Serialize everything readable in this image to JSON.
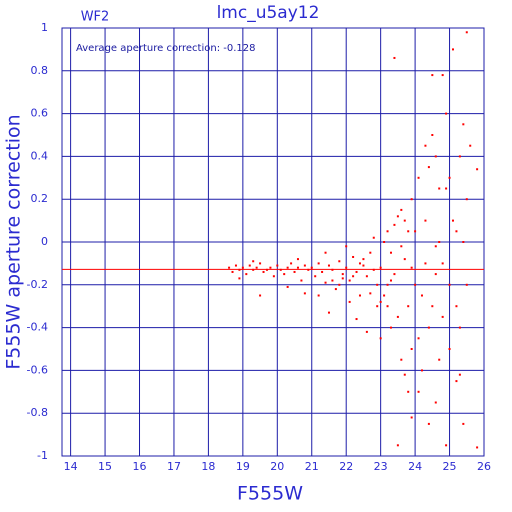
{
  "chart_data": {
    "type": "scatter",
    "title": "lmc_u5ay12",
    "panel_label": "WF2",
    "annotation": "Average aperture correction: -0.128",
    "average": -0.128,
    "x_label": "F555W",
    "y_label": "F555W aperture correction",
    "color": "#ff0000",
    "grid": true,
    "xlim": [
      13.75,
      26
    ],
    "ylim": [
      -1,
      1
    ],
    "xticks": [
      14,
      15,
      16,
      17,
      18,
      19,
      20,
      21,
      22,
      23,
      24,
      25,
      26
    ],
    "yticks": [
      -1,
      -0.8,
      -0.6,
      -0.4,
      -0.2,
      0,
      0.2,
      0.4,
      0.6,
      0.8,
      1
    ],
    "x": [
      18.6,
      18.7,
      18.8,
      18.9,
      19.0,
      19.1,
      19.2,
      19.3,
      19.4,
      19.5,
      19.6,
      19.7,
      19.8,
      19.9,
      20.0,
      20.1,
      20.2,
      20.3,
      20.4,
      20.5,
      20.6,
      20.7,
      20.8,
      20.9,
      19.5,
      20.3,
      20.8,
      18.9,
      19.3,
      20.6,
      21.0,
      21.1,
      21.2,
      21.3,
      21.4,
      21.5,
      21.6,
      21.7,
      21.8,
      21.9,
      22.0,
      22.1,
      22.2,
      22.3,
      22.4,
      22.5,
      22.6,
      22.7,
      22.8,
      22.9,
      21.2,
      21.5,
      21.8,
      22.0,
      22.3,
      22.6,
      22.8,
      21.4,
      22.1,
      22.9,
      21.9,
      22.5,
      21.6,
      22.7,
      22.2,
      22.4,
      23.0,
      23.1,
      23.2,
      23.3,
      23.4,
      23.5,
      23.6,
      23.7,
      23.8,
      23.9,
      23.0,
      23.2,
      23.4,
      23.6,
      23.8,
      23.1,
      23.3,
      23.5,
      23.7,
      23.9,
      23.5,
      23.4,
      23.9,
      23.7,
      23.2,
      23.6,
      23.8,
      23.3,
      23.0,
      23.9,
      24.0,
      24.1,
      24.2,
      24.3,
      24.4,
      24.5,
      24.6,
      24.7,
      24.8,
      24.9,
      25.0,
      25.1,
      25.2,
      25.3,
      25.4,
      25.5,
      24.0,
      24.2,
      24.4,
      24.6,
      24.8,
      25.0,
      25.2,
      25.4,
      24.1,
      24.3,
      24.5,
      24.7,
      24.9,
      25.1,
      25.3,
      25.5,
      24.5,
      24.9,
      24.7,
      25.0,
      24.3,
      24.8,
      25.2,
      24.6,
      25.4,
      24.1,
      24.4,
      25.5,
      25.8,
      25.8,
      25.6,
      24.6,
      25.3
    ],
    "values": [
      -0.12,
      -0.14,
      -0.11,
      -0.13,
      -0.12,
      -0.15,
      -0.11,
      -0.13,
      -0.12,
      -0.1,
      -0.14,
      -0.13,
      -0.12,
      -0.16,
      -0.11,
      -0.13,
      -0.15,
      -0.12,
      -0.1,
      -0.14,
      -0.12,
      -0.18,
      -0.11,
      -0.13,
      -0.25,
      -0.21,
      -0.24,
      -0.17,
      -0.09,
      -0.08,
      -0.12,
      -0.16,
      -0.1,
      -0.14,
      -0.19,
      -0.11,
      -0.13,
      -0.22,
      -0.09,
      -0.15,
      -0.12,
      -0.18,
      -0.07,
      -0.14,
      -0.25,
      -0.11,
      -0.16,
      -0.05,
      -0.13,
      -0.3,
      -0.25,
      -0.33,
      -0.2,
      -0.02,
      -0.36,
      -0.42,
      0.02,
      -0.05,
      -0.28,
      -0.2,
      -0.17,
      -0.08,
      -0.18,
      -0.24,
      -0.16,
      -0.1,
      -0.12,
      -0.25,
      0.05,
      -0.4,
      -0.15,
      0.12,
      -0.55,
      -0.08,
      -0.3,
      0.2,
      -0.45,
      -0.2,
      0.08,
      -0.02,
      -0.7,
      0.0,
      -0.18,
      -0.35,
      0.1,
      -0.5,
      -0.95,
      0.86,
      -0.82,
      -0.62,
      -0.3,
      0.15,
      0.05,
      -0.05,
      -0.28,
      -0.12,
      -0.2,
      0.3,
      -0.6,
      0.1,
      -0.4,
      0.5,
      -0.75,
      0.25,
      -0.1,
      0.6,
      -0.5,
      0.1,
      -0.3,
      0.4,
      -0.85,
      0.2,
      0.05,
      -0.25,
      0.35,
      -0.15,
      0.78,
      0.3,
      -0.65,
      0.0,
      -0.45,
      0.45,
      -0.3,
      -0.55,
      -0.95,
      0.9,
      -0.4,
      -0.2,
      0.78,
      0.25,
      0.0,
      -0.2,
      -0.1,
      -0.35,
      0.05,
      0.4,
      0.55,
      -0.7,
      -0.85,
      0.98,
      -0.96,
      0.34,
      0.45,
      -0.02,
      -0.62
    ]
  }
}
